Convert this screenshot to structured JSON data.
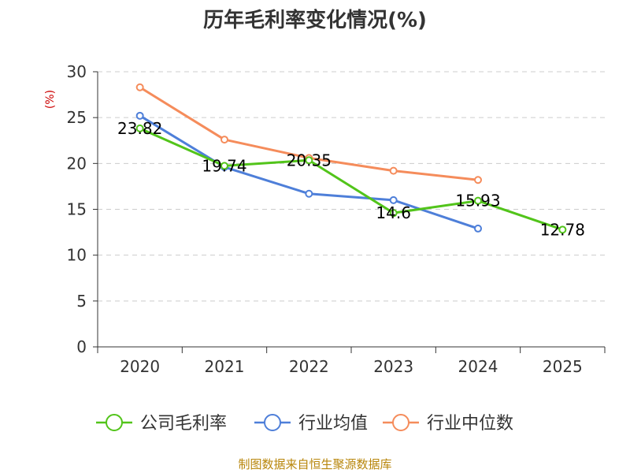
{
  "chart_data": {
    "type": "line",
    "title": "历年毛利率变化情况(%)",
    "ylabel": "(%)",
    "xlabel": "",
    "categories": [
      "2020",
      "2021",
      "2022",
      "2023",
      "2024",
      "2025"
    ],
    "ylim": [
      0,
      30
    ],
    "yticks": [
      0,
      5,
      10,
      15,
      20,
      25,
      30
    ],
    "grid": true,
    "legend_position": "bottom",
    "series": [
      {
        "name": "公司毛利率",
        "color": "#52c41a",
        "values": [
          23.82,
          19.74,
          20.35,
          14.6,
          15.93,
          12.78
        ],
        "labels": [
          "23.82",
          "19.74",
          "20.35",
          "14.6",
          "15.93",
          "12.78"
        ]
      },
      {
        "name": "行业均值",
        "color": "#4e7fd9",
        "values": [
          25.2,
          19.6,
          16.7,
          16.0,
          12.9,
          null
        ]
      },
      {
        "name": "行业中位数",
        "color": "#f58c5b",
        "values": [
          28.3,
          22.6,
          20.6,
          19.2,
          18.2,
          null
        ]
      }
    ]
  },
  "source_text": "制图数据来自恒生聚源数据库"
}
